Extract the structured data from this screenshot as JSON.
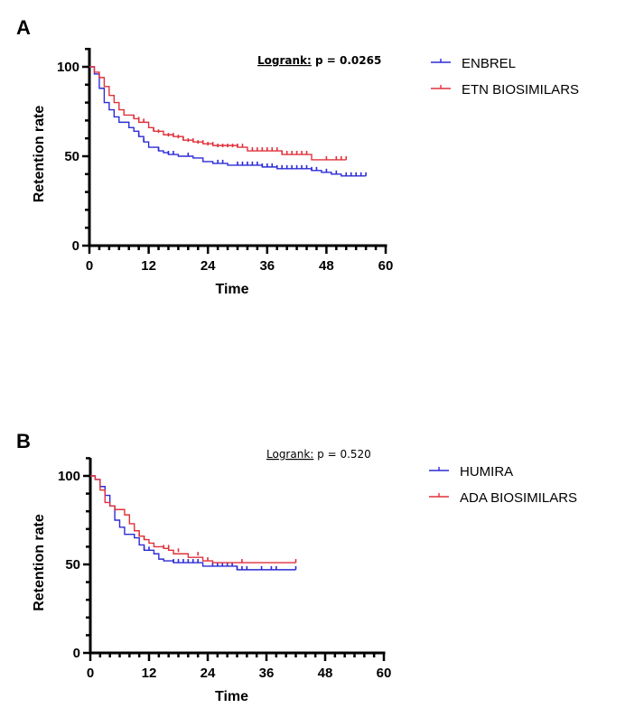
{
  "chart_data": [
    {
      "panel_label": "A",
      "type": "line",
      "subtype": "kaplan-meier step",
      "title": "",
      "xlabel": "Time",
      "ylabel": "Retention rate",
      "xlim": [
        0,
        60
      ],
      "ylim": [
        0,
        110
      ],
      "xticks": [
        0,
        12,
        24,
        36,
        48,
        60
      ],
      "xtick_labels": [
        "0",
        "12",
        "24",
        "36",
        "48",
        "60"
      ],
      "yticks": [
        0,
        50,
        100
      ],
      "ytick_labels": [
        "0",
        "50",
        "100"
      ],
      "x_minor_step": 2,
      "y_minor_step": 10,
      "grid": false,
      "legend_position": "right",
      "annotation": {
        "label": "Logrank:",
        "text": " p = 0.0265",
        "bold": true
      },
      "series": [
        {
          "name": "ENBREL",
          "color": "#2b2bd6",
          "steps": [
            [
              0,
              100
            ],
            [
              1,
              96
            ],
            [
              2,
              88
            ],
            [
              3,
              80
            ],
            [
              4,
              76
            ],
            [
              5,
              72
            ],
            [
              6,
              69
            ],
            [
              8,
              66
            ],
            [
              9,
              64
            ],
            [
              10,
              61
            ],
            [
              11,
              58
            ],
            [
              12,
              55
            ],
            [
              14,
              53
            ],
            [
              15,
              52
            ],
            [
              16,
              51
            ],
            [
              18,
              50
            ],
            [
              21,
              49
            ],
            [
              23,
              47
            ],
            [
              25,
              46
            ],
            [
              28,
              45
            ],
            [
              32,
              45
            ],
            [
              35,
              44
            ],
            [
              38,
              43
            ],
            [
              45,
              42
            ],
            [
              47,
              41
            ],
            [
              49,
              40
            ],
            [
              51,
              39
            ],
            [
              56,
              39
            ]
          ],
          "censored": [
            [
              10,
              61
            ],
            [
              11,
              58
            ],
            [
              14,
              53
            ],
            [
              16,
              51
            ],
            [
              17,
              51
            ],
            [
              20,
              50
            ],
            [
              26,
              46
            ],
            [
              27,
              46
            ],
            [
              30,
              45
            ],
            [
              31,
              45
            ],
            [
              32,
              45
            ],
            [
              33,
              45
            ],
            [
              34,
              45
            ],
            [
              35,
              44
            ],
            [
              36,
              44
            ],
            [
              37,
              44
            ],
            [
              38,
              43
            ],
            [
              39,
              43
            ],
            [
              40,
              43
            ],
            [
              41,
              43
            ],
            [
              42,
              43
            ],
            [
              43,
              43
            ],
            [
              44,
              43
            ],
            [
              45,
              42
            ],
            [
              46,
              42
            ],
            [
              48,
              41
            ],
            [
              50,
              40
            ],
            [
              52,
              39
            ],
            [
              53,
              39
            ],
            [
              54,
              39
            ],
            [
              55,
              39
            ],
            [
              56,
              39
            ]
          ]
        },
        {
          "name": "ETN BIOSIMILARS",
          "color": "#e0303a",
          "steps": [
            [
              0,
              100
            ],
            [
              1,
              97
            ],
            [
              2,
              94
            ],
            [
              3,
              89
            ],
            [
              4,
              84
            ],
            [
              5,
              80
            ],
            [
              6,
              76
            ],
            [
              7,
              73
            ],
            [
              9,
              71
            ],
            [
              10,
              69
            ],
            [
              12,
              66
            ],
            [
              13,
              64
            ],
            [
              15,
              62
            ],
            [
              17,
              61
            ],
            [
              19,
              59
            ],
            [
              21,
              58
            ],
            [
              23,
              57
            ],
            [
              25,
              56
            ],
            [
              27,
              56
            ],
            [
              30,
              55
            ],
            [
              32,
              53
            ],
            [
              39,
              51
            ],
            [
              45,
              48
            ],
            [
              52,
              48
            ]
          ],
          "censored": [
            [
              9,
              71
            ],
            [
              10,
              70
            ],
            [
              11,
              69
            ],
            [
              13,
              64
            ],
            [
              14,
              63
            ],
            [
              16,
              61
            ],
            [
              17,
              61
            ],
            [
              18,
              60
            ],
            [
              19,
              59
            ],
            [
              20,
              58
            ],
            [
              21,
              58
            ],
            [
              22,
              57
            ],
            [
              23,
              57
            ],
            [
              24,
              56
            ],
            [
              25,
              56
            ],
            [
              26,
              55
            ],
            [
              27,
              55
            ],
            [
              28,
              55
            ],
            [
              29,
              55
            ],
            [
              30,
              55
            ],
            [
              31,
              55
            ],
            [
              33,
              53
            ],
            [
              34,
              53
            ],
            [
              35,
              53
            ],
            [
              36,
              53
            ],
            [
              37,
              53
            ],
            [
              38,
              53
            ],
            [
              39,
              51
            ],
            [
              40,
              51
            ],
            [
              41,
              51
            ],
            [
              42,
              51
            ],
            [
              43,
              51
            ],
            [
              44,
              51
            ],
            [
              48,
              48
            ],
            [
              50,
              48
            ],
            [
              51,
              48
            ],
            [
              52,
              48
            ]
          ]
        }
      ]
    },
    {
      "panel_label": "B",
      "type": "line",
      "subtype": "kaplan-meier step",
      "title": "",
      "xlabel": "Time",
      "ylabel": "Retention rate",
      "xlim": [
        0,
        60
      ],
      "ylim": [
        0,
        110
      ],
      "xticks": [
        0,
        12,
        24,
        36,
        48,
        60
      ],
      "xtick_labels": [
        "0",
        "12",
        "24",
        "36",
        "48",
        "60"
      ],
      "yticks": [
        0,
        50,
        100
      ],
      "ytick_labels": [
        "0",
        "50",
        "100"
      ],
      "x_minor_step": 2,
      "y_minor_step": 10,
      "grid": false,
      "legend_position": "right",
      "annotation": {
        "label": "Logrank:",
        "text": " p = 0.520",
        "bold": false
      },
      "series": [
        {
          "name": "HUMIRA",
          "color": "#2b2bd6",
          "steps": [
            [
              0,
              100
            ],
            [
              1,
              98
            ],
            [
              2,
              94
            ],
            [
              3,
              89
            ],
            [
              4,
              83
            ],
            [
              5,
              75
            ],
            [
              6,
              71
            ],
            [
              7,
              67
            ],
            [
              9,
              65
            ],
            [
              10,
              61
            ],
            [
              11,
              58
            ],
            [
              13,
              56
            ],
            [
              14,
              53
            ],
            [
              15,
              52
            ],
            [
              17,
              51
            ],
            [
              23,
              49
            ],
            [
              30,
              47
            ],
            [
              42,
              47
            ]
          ],
          "censored": [
            [
              11,
              58
            ],
            [
              12,
              58
            ],
            [
              17,
              51
            ],
            [
              18,
              51
            ],
            [
              19,
              51
            ],
            [
              20,
              51
            ],
            [
              21,
              51
            ],
            [
              22,
              51
            ],
            [
              25,
              49
            ],
            [
              26,
              49
            ],
            [
              27,
              49
            ],
            [
              28,
              49
            ],
            [
              29,
              49
            ],
            [
              30,
              47
            ],
            [
              31,
              47
            ],
            [
              32,
              47
            ],
            [
              35,
              47
            ],
            [
              37,
              47
            ],
            [
              38,
              47
            ],
            [
              42,
              47
            ]
          ]
        },
        {
          "name": "ADA BIOSIMILARS",
          "color": "#e0303a",
          "steps": [
            [
              0,
              100
            ],
            [
              1,
              98
            ],
            [
              2,
              92
            ],
            [
              3,
              85
            ],
            [
              4,
              83
            ],
            [
              5,
              81
            ],
            [
              7,
              78
            ],
            [
              8,
              73
            ],
            [
              9,
              69
            ],
            [
              10,
              66
            ],
            [
              11,
              64
            ],
            [
              12,
              62
            ],
            [
              13,
              60
            ],
            [
              15,
              59
            ],
            [
              16,
              58
            ],
            [
              17,
              56
            ],
            [
              20,
              54
            ],
            [
              23,
              52
            ],
            [
              25,
              51
            ],
            [
              42,
              51
            ]
          ],
          "censored": [
            [
              10,
              66
            ],
            [
              11,
              64
            ],
            [
              15,
              59
            ],
            [
              16,
              59
            ],
            [
              18,
              57
            ],
            [
              22,
              55
            ],
            [
              24,
              52
            ],
            [
              31,
              51
            ],
            [
              42,
              51
            ]
          ]
        }
      ]
    }
  ]
}
